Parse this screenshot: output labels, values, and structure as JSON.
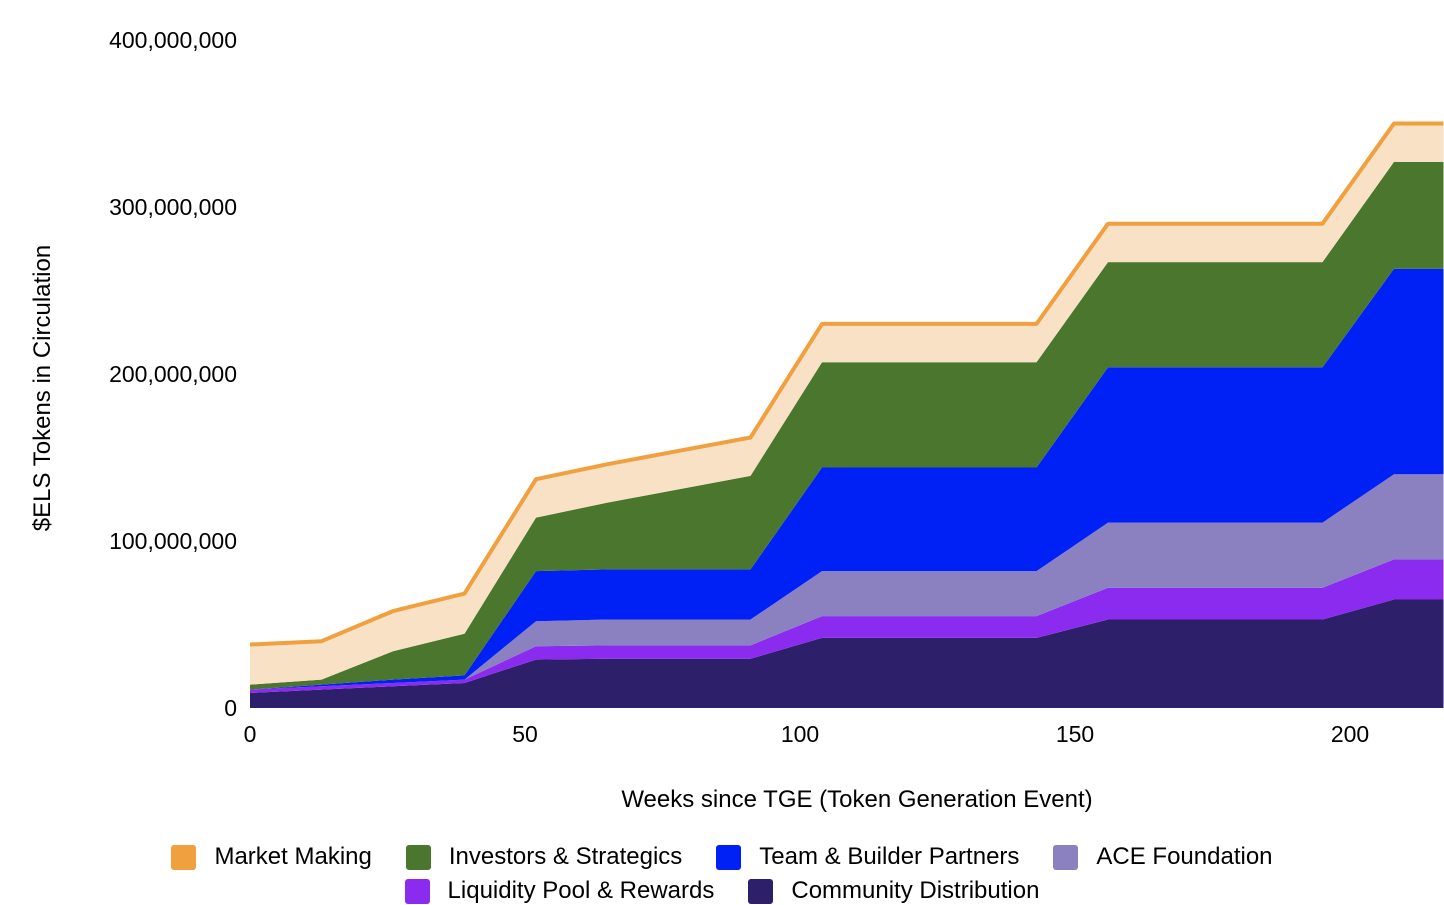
{
  "chart_data": {
    "type": "area",
    "stacked": true,
    "title": "",
    "xlabel": "Weeks since TGE (Token Generation Event)",
    "ylabel": "$ELS Tokens in Circulation",
    "x_ticks": [
      "0",
      "50",
      "100",
      "150",
      "200"
    ],
    "y_ticks": [
      "0",
      "100,000,000",
      "200,000,000",
      "300,000,000",
      "400,000,000"
    ],
    "xlim": [
      0,
      217
    ],
    "ylim": [
      0,
      400000000
    ],
    "grid": false,
    "legend_position": "bottom",
    "x": [
      0,
      13,
      26,
      39,
      52,
      65,
      78,
      91,
      104,
      117,
      130,
      143,
      156,
      169,
      182,
      195,
      208,
      217
    ],
    "series": [
      {
        "name": "Community Distribution",
        "color": "#2e1f6b",
        "values": [
          9000000,
          11000000,
          13000000,
          15000000,
          29000000,
          29500000,
          29500000,
          29500000,
          42000000,
          42000000,
          42000000,
          42000000,
          53000000,
          53000000,
          53000000,
          53000000,
          65000000,
          65000000
        ]
      },
      {
        "name": "Liquidity Pool & Rewards",
        "color": "#8c2bf0",
        "values": [
          2000000,
          2000000,
          2000000,
          2000000,
          8000000,
          8000000,
          8000000,
          8000000,
          13000000,
          13000000,
          13000000,
          13000000,
          19000000,
          19000000,
          19000000,
          19000000,
          24000000,
          24000000
        ]
      },
      {
        "name": "ACE Foundation",
        "color": "#8b80c0",
        "values": [
          0,
          0,
          0,
          0,
          15000000,
          15500000,
          15500000,
          15500000,
          27000000,
          27000000,
          27000000,
          27000000,
          39000000,
          39000000,
          39000000,
          39000000,
          51000000,
          51000000
        ]
      },
      {
        "name": "Team & Builder Partners",
        "color": "#0021f5",
        "values": [
          0,
          1000000,
          2000000,
          2500000,
          30000000,
          30000000,
          30000000,
          30000000,
          62000000,
          62000000,
          62000000,
          62000000,
          93000000,
          93000000,
          93000000,
          93000000,
          123000000,
          123000000
        ]
      },
      {
        "name": "Investors & Strategics",
        "color": "#4a772d",
        "values": [
          3000000,
          3000000,
          17000000,
          25000000,
          32000000,
          40000000,
          48000000,
          56000000,
          63000000,
          63000000,
          63000000,
          63000000,
          63000000,
          63000000,
          63000000,
          63000000,
          64000000,
          64000000
        ]
      },
      {
        "name": "Market Making",
        "color": "#f0a03e",
        "values": [
          24000000,
          23000000,
          24000000,
          24000000,
          23000000,
          23000000,
          23000000,
          23000000,
          23000000,
          23000000,
          23000000,
          23000000,
          23000000,
          23000000,
          23000000,
          23000000,
          23000000,
          23000000
        ]
      }
    ],
    "legend": [
      [
        "Market Making",
        "Investors & Strategics",
        "Team & Builder Partners",
        "ACE Foundation"
      ],
      [
        "Liquidity Pool & Rewards",
        "Community Distribution"
      ]
    ],
    "market_making_fill": "#f9e1c6"
  }
}
